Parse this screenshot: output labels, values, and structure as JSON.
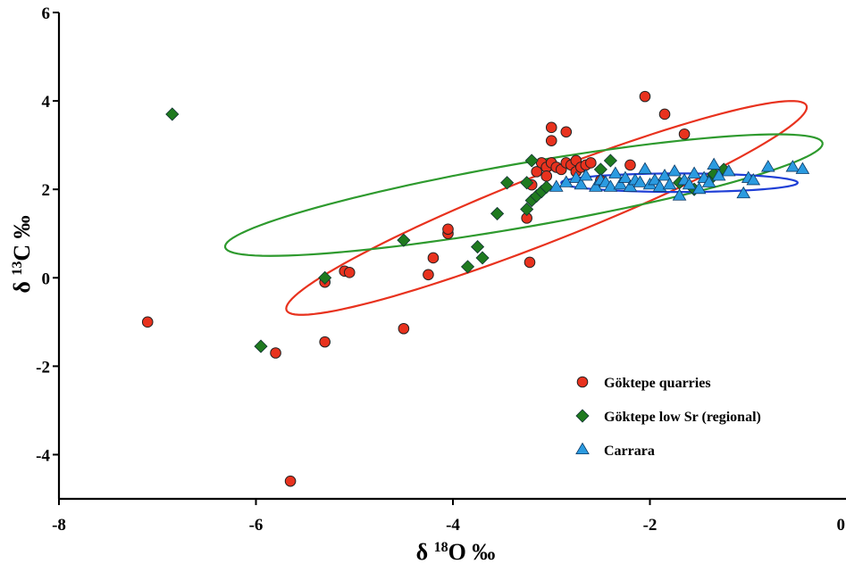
{
  "chart_data": {
    "type": "scatter",
    "xlabel": {
      "prefix": "δ ",
      "sup": "18",
      "main": "O ‰"
    },
    "ylabel": {
      "prefix": "δ ",
      "sup": "13",
      "main": "C ‰"
    },
    "xlim": [
      -8,
      0
    ],
    "ylim": [
      -5,
      6
    ],
    "x_ticks": [
      -8,
      -6,
      -4,
      -2,
      0
    ],
    "y_ticks": [
      -4,
      -2,
      0,
      2,
      4,
      6
    ],
    "x_tick_labels": [
      "-8",
      "-6",
      "-4",
      "-2",
      "0"
    ],
    "y_tick_labels": [
      "-4",
      "-2",
      "0",
      "2",
      "4",
      "6"
    ],
    "grid": false,
    "legend_position": "bottom-right",
    "series": [
      {
        "name": "Göktepe quarries",
        "marker": "circle",
        "color": "#e8321e",
        "points": [
          [
            -7.1,
            -1.0
          ],
          [
            -5.8,
            -1.7
          ],
          [
            -5.65,
            -4.6
          ],
          [
            -5.3,
            -0.1
          ],
          [
            -5.3,
            -1.45
          ],
          [
            -5.1,
            0.15
          ],
          [
            -5.05,
            0.12
          ],
          [
            -4.5,
            -1.15
          ],
          [
            -4.25,
            0.07
          ],
          [
            -4.2,
            0.45
          ],
          [
            -4.05,
            1.0
          ],
          [
            -4.05,
            1.1
          ],
          [
            -3.25,
            1.35
          ],
          [
            -3.22,
            0.35
          ],
          [
            -3.2,
            2.1
          ],
          [
            -3.15,
            2.4
          ],
          [
            -3.1,
            2.6
          ],
          [
            -3.05,
            2.5
          ],
          [
            -3.05,
            2.3
          ],
          [
            -3.0,
            2.6
          ],
          [
            -3.0,
            3.1
          ],
          [
            -3.0,
            3.4
          ],
          [
            -2.95,
            2.5
          ],
          [
            -2.9,
            2.45
          ],
          [
            -2.85,
            2.6
          ],
          [
            -2.85,
            3.3
          ],
          [
            -2.8,
            2.55
          ],
          [
            -2.75,
            2.65
          ],
          [
            -2.75,
            2.4
          ],
          [
            -2.7,
            2.5
          ],
          [
            -2.65,
            2.55
          ],
          [
            -2.6,
            2.6
          ],
          [
            -2.5,
            2.2
          ],
          [
            -2.2,
            2.55
          ],
          [
            -2.05,
            4.1
          ],
          [
            -1.85,
            3.7
          ],
          [
            -1.65,
            3.25
          ]
        ]
      },
      {
        "name": "Göktepe low Sr (regional)",
        "marker": "diamond",
        "color": "#1f7a1f",
        "points": [
          [
            -6.85,
            3.7
          ],
          [
            -5.95,
            -1.55
          ],
          [
            -5.3,
            0.0
          ],
          [
            -4.5,
            0.85
          ],
          [
            -3.85,
            0.25
          ],
          [
            -3.75,
            0.7
          ],
          [
            -3.7,
            0.45
          ],
          [
            -3.55,
            1.45
          ],
          [
            -3.45,
            2.15
          ],
          [
            -3.25,
            1.55
          ],
          [
            -3.25,
            2.15
          ],
          [
            -3.2,
            1.75
          ],
          [
            -3.2,
            2.65
          ],
          [
            -3.15,
            1.85
          ],
          [
            -3.1,
            1.95
          ],
          [
            -3.05,
            2.05
          ],
          [
            -2.5,
            2.45
          ],
          [
            -2.4,
            2.65
          ],
          [
            -1.7,
            2.15
          ],
          [
            -1.55,
            2.0
          ],
          [
            -1.4,
            2.2
          ],
          [
            -1.35,
            2.35
          ],
          [
            -1.25,
            2.45
          ]
        ]
      },
      {
        "name": "Carrara",
        "marker": "triangle",
        "color": "#2b9be0",
        "points": [
          [
            -2.95,
            2.05
          ],
          [
            -2.85,
            2.15
          ],
          [
            -2.75,
            2.25
          ],
          [
            -2.7,
            2.1
          ],
          [
            -2.65,
            2.3
          ],
          [
            -2.55,
            2.05
          ],
          [
            -2.5,
            2.2
          ],
          [
            -2.45,
            2.15
          ],
          [
            -2.4,
            2.05
          ],
          [
            -2.35,
            2.35
          ],
          [
            -2.3,
            2.1
          ],
          [
            -2.25,
            2.25
          ],
          [
            -2.2,
            2.05
          ],
          [
            -2.15,
            2.2
          ],
          [
            -2.1,
            2.15
          ],
          [
            -2.05,
            2.45
          ],
          [
            -2.0,
            2.1
          ],
          [
            -1.95,
            2.2
          ],
          [
            -1.9,
            2.05
          ],
          [
            -1.85,
            2.3
          ],
          [
            -1.8,
            2.1
          ],
          [
            -1.75,
            2.4
          ],
          [
            -1.7,
            1.85
          ],
          [
            -1.65,
            2.2
          ],
          [
            -1.6,
            2.1
          ],
          [
            -1.55,
            2.35
          ],
          [
            -1.5,
            2.0
          ],
          [
            -1.45,
            2.25
          ],
          [
            -1.4,
            2.15
          ],
          [
            -1.35,
            2.55
          ],
          [
            -1.3,
            2.3
          ],
          [
            -1.2,
            2.4
          ],
          [
            -1.05,
            1.9
          ],
          [
            -1.0,
            2.25
          ],
          [
            -0.95,
            2.2
          ],
          [
            -0.8,
            2.5
          ],
          [
            -0.55,
            2.5
          ],
          [
            -0.45,
            2.45
          ]
        ]
      }
    ],
    "ellipses": [
      {
        "series": "Göktepe quarries",
        "color": "#e8321e",
        "cx": -3.05,
        "cy": 1.58,
        "rx": 3.53,
        "ry": 0.61,
        "angle_deg": 42.3
      },
      {
        "series": "Göktepe low Sr (regional)",
        "color": "#2e9a2e",
        "cx": -3.28,
        "cy": 1.87,
        "rx": 3.26,
        "ry": 0.68,
        "angle_deg": 22.0
      },
      {
        "series": "Carrara",
        "color": "#1f3fd6",
        "cx": -1.7,
        "cy": 2.15,
        "rx": 1.2,
        "ry": 0.21,
        "angle_deg": 0.0
      }
    ]
  }
}
